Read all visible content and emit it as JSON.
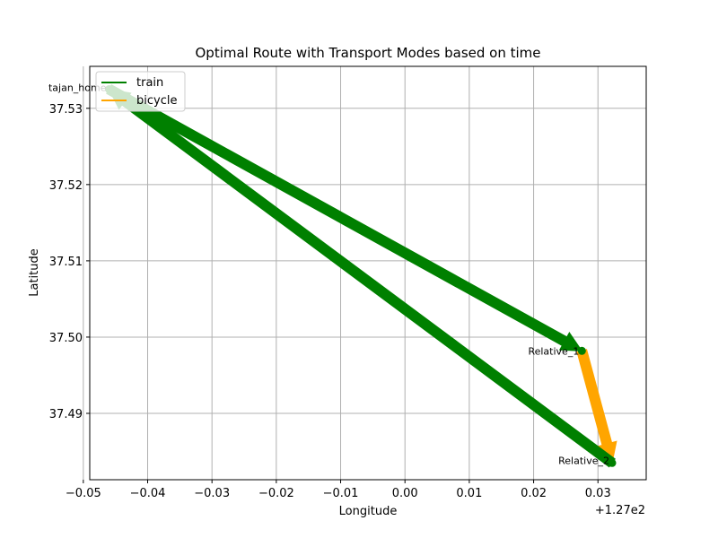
{
  "chart_data": {
    "type": "line",
    "title": "Optimal Route with Transport Modes based on time",
    "xlabel": "Longitude",
    "ylabel": "Latitude",
    "x_offset_label": "+1.27e2",
    "xlim": [
      126.951,
      127.0375
    ],
    "ylim": [
      37.4813,
      37.5355
    ],
    "grid": true,
    "legend_position": "upper-left",
    "x_ticks": [
      {
        "value": 126.95,
        "label": "−0.05"
      },
      {
        "value": 126.96,
        "label": "−0.04"
      },
      {
        "value": 126.97,
        "label": "−0.03"
      },
      {
        "value": 126.98,
        "label": "−0.02"
      },
      {
        "value": 126.99,
        "label": "−0.01"
      },
      {
        "value": 127.0,
        "label": "0.00"
      },
      {
        "value": 127.01,
        "label": "0.01"
      },
      {
        "value": 127.02,
        "label": "0.02"
      },
      {
        "value": 127.03,
        "label": "0.03"
      }
    ],
    "y_ticks": [
      {
        "value": 37.49,
        "label": "37.49"
      },
      {
        "value": 37.5,
        "label": "37.50"
      },
      {
        "value": 37.51,
        "label": "37.51"
      },
      {
        "value": 37.52,
        "label": "37.52"
      },
      {
        "value": 37.53,
        "label": "37.53"
      }
    ],
    "points": [
      {
        "name": "tajan_home",
        "lon": 126.954,
        "lat": 37.5325,
        "label_align": "end",
        "label_dx": -3,
        "label_dy": 2
      },
      {
        "name": "Relative_1",
        "lon": 127.0275,
        "lat": 37.4982,
        "label_align": "end",
        "label_dx": -3,
        "label_dy": 4
      },
      {
        "name": "Relative_2",
        "lon": 127.0322,
        "lat": 37.4835,
        "label_align": "end",
        "label_dx": -3,
        "label_dy": 1
      }
    ],
    "legend": [
      {
        "name": "train",
        "color": "#008000"
      },
      {
        "name": "bicycle",
        "color": "#ffa500"
      }
    ],
    "segments": [
      {
        "mode": "train",
        "color": "#008000",
        "from": [
          126.954,
          37.5325
        ],
        "to": [
          127.0275,
          37.4982
        ]
      },
      {
        "mode": "bicycle",
        "color": "#ffa500",
        "from": [
          127.0275,
          37.4982
        ],
        "to": [
          127.0322,
          37.4835
        ]
      },
      {
        "mode": "train",
        "color": "#008000",
        "from": [
          127.0322,
          37.4835
        ],
        "to": [
          126.954,
          37.5325
        ]
      }
    ]
  }
}
